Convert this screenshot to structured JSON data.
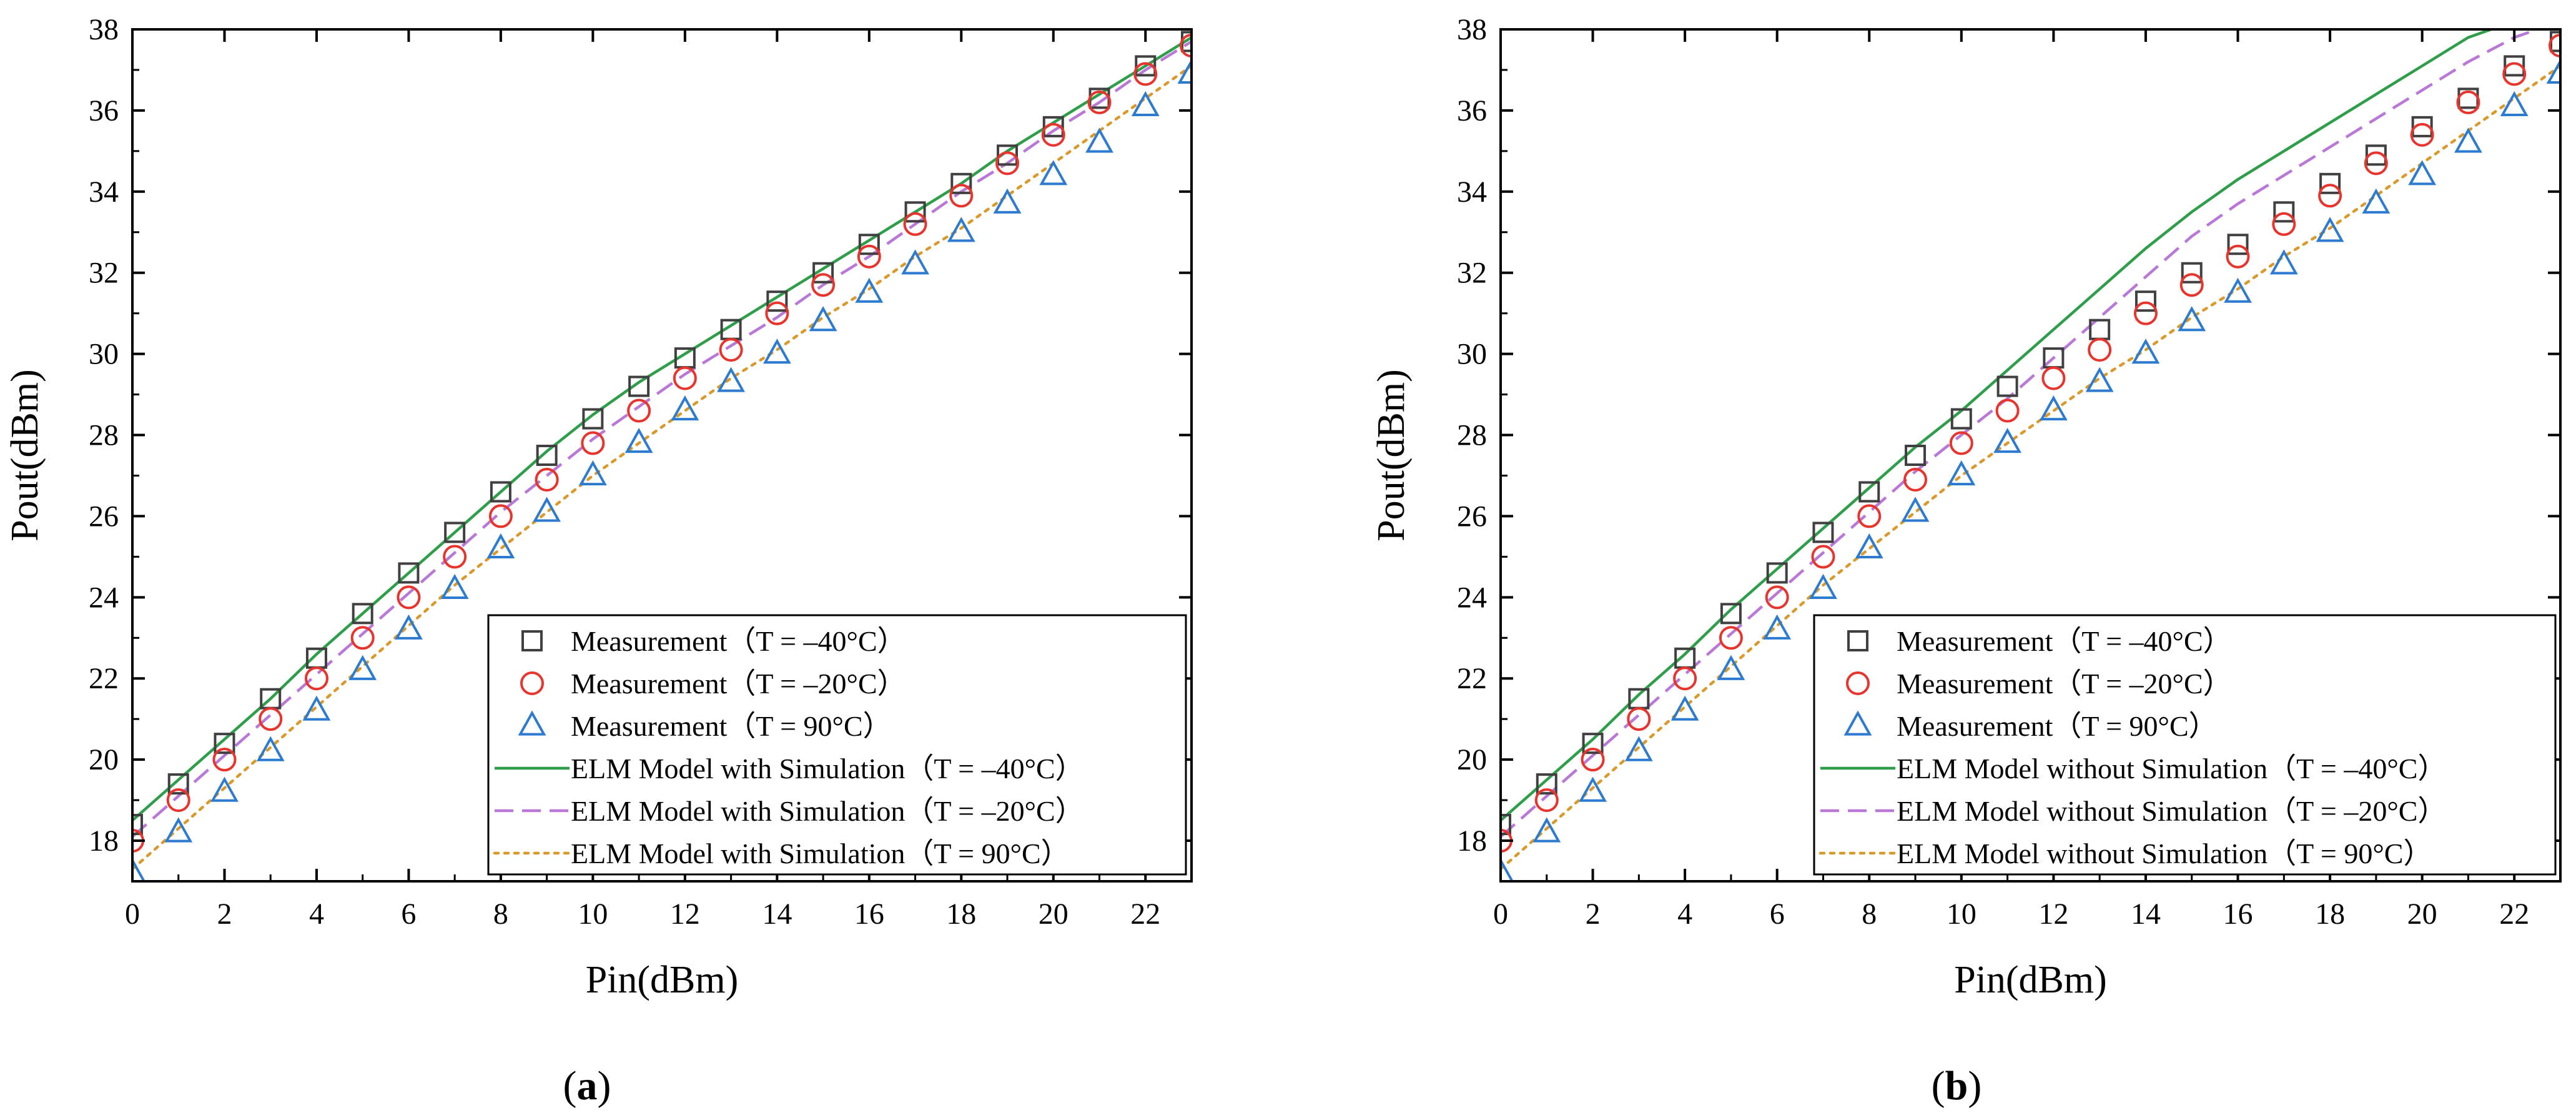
{
  "chart_data": [
    {
      "type": "line",
      "panel_label": "(a)",
      "panel_letter": "a",
      "xlabel": "Pin(dBm)",
      "ylabel": "Pout(dBm)",
      "xlim": [
        0,
        23
      ],
      "ylim": [
        17,
        38
      ],
      "xticks": [
        0,
        2,
        4,
        6,
        8,
        10,
        12,
        14,
        16,
        18,
        20,
        22
      ],
      "yticks": [
        18,
        20,
        22,
        24,
        26,
        28,
        30,
        32,
        34,
        36,
        38
      ],
      "legend_position": "bottom-right",
      "series": [
        {
          "name": "Measurement（T = –40°C）",
          "kind": "marker",
          "marker": "square",
          "color": "#404040",
          "x": [
            0,
            1,
            2,
            3,
            4,
            5,
            6,
            7,
            8,
            9,
            10,
            11,
            12,
            13,
            14,
            15,
            16,
            17,
            18,
            19,
            20,
            21,
            22,
            23
          ],
          "values": [
            18.4,
            19.4,
            20.4,
            21.5,
            22.5,
            23.6,
            24.6,
            25.6,
            26.6,
            27.5,
            28.4,
            29.2,
            29.9,
            30.6,
            31.3,
            32.0,
            32.7,
            33.5,
            34.2,
            34.9,
            35.6,
            36.3,
            37.1,
            37.7
          ]
        },
        {
          "name": "Measurement（T = –20°C）",
          "kind": "marker",
          "marker": "circle",
          "color": "#e8342c",
          "x": [
            0,
            1,
            2,
            3,
            4,
            5,
            6,
            7,
            8,
            9,
            10,
            11,
            12,
            13,
            14,
            15,
            16,
            17,
            18,
            19,
            20,
            21,
            22,
            23
          ],
          "values": [
            18.0,
            19.0,
            20.0,
            21.0,
            22.0,
            23.0,
            24.0,
            25.0,
            26.0,
            26.9,
            27.8,
            28.6,
            29.4,
            30.1,
            31.0,
            31.7,
            32.4,
            33.2,
            33.9,
            34.7,
            35.4,
            36.2,
            36.9,
            37.6
          ]
        },
        {
          "name": "Measurement（T = 90°C）",
          "kind": "marker",
          "marker": "triangle",
          "color": "#2d7bd0",
          "x": [
            0,
            1,
            2,
            3,
            4,
            5,
            6,
            7,
            8,
            9,
            10,
            11,
            12,
            13,
            14,
            15,
            16,
            17,
            18,
            19,
            20,
            21,
            22,
            23
          ],
          "values": [
            17.2,
            18.2,
            19.2,
            20.2,
            21.2,
            22.2,
            23.2,
            24.2,
            25.2,
            26.1,
            27.0,
            27.8,
            28.6,
            29.3,
            30.0,
            30.8,
            31.5,
            32.2,
            33.0,
            33.7,
            34.4,
            35.2,
            36.1,
            36.9
          ]
        },
        {
          "name": "ELM Model with Simulation（T = –40°C）",
          "kind": "line",
          "dash": "solid",
          "color": "#2e9e4a",
          "x": [
            0,
            1,
            2,
            3,
            4,
            5,
            6,
            7,
            8,
            9,
            10,
            11,
            12,
            13,
            14,
            15,
            16,
            17,
            18,
            19,
            20,
            21,
            22,
            23
          ],
          "values": [
            18.5,
            19.5,
            20.5,
            21.5,
            22.6,
            23.6,
            24.6,
            25.6,
            26.6,
            27.6,
            28.5,
            29.3,
            30.0,
            30.7,
            31.4,
            32.1,
            32.8,
            33.5,
            34.2,
            35.0,
            35.7,
            36.4,
            37.1,
            37.8
          ]
        },
        {
          "name": "ELM Model with Simulation（T = –20°C）",
          "kind": "line",
          "dash": "dashed",
          "color": "#b978d8",
          "x": [
            0,
            1,
            2,
            3,
            4,
            5,
            6,
            7,
            8,
            9,
            10,
            11,
            12,
            13,
            14,
            15,
            16,
            17,
            18,
            19,
            20,
            21,
            22,
            23
          ],
          "values": [
            18.1,
            19.1,
            20.1,
            21.1,
            22.1,
            23.1,
            24.1,
            25.1,
            26.1,
            27.0,
            27.9,
            28.7,
            29.5,
            30.2,
            30.9,
            31.7,
            32.4,
            33.2,
            34.0,
            34.7,
            35.5,
            36.2,
            37.0,
            37.7
          ]
        },
        {
          "name": "ELM Model with Simulation（T = 90°C）",
          "kind": "line",
          "dash": "dotted",
          "color": "#d99a2b",
          "x": [
            0,
            1,
            2,
            3,
            4,
            5,
            6,
            7,
            8,
            9,
            10,
            11,
            12,
            13,
            14,
            15,
            16,
            17,
            18,
            19,
            20,
            21,
            22,
            23
          ],
          "values": [
            17.3,
            18.3,
            19.3,
            20.3,
            21.3,
            22.3,
            23.3,
            24.3,
            25.2,
            26.1,
            27.0,
            27.8,
            28.6,
            29.4,
            30.1,
            30.9,
            31.6,
            32.4,
            33.1,
            33.9,
            34.7,
            35.5,
            36.3,
            37.1
          ]
        }
      ]
    },
    {
      "type": "line",
      "panel_label": "(b)",
      "panel_letter": "b",
      "xlabel": "Pin(dBm)",
      "ylabel": "Pout(dBm)",
      "xlim": [
        0,
        23
      ],
      "ylim": [
        17,
        38
      ],
      "xticks": [
        0,
        2,
        4,
        6,
        8,
        10,
        12,
        14,
        16,
        18,
        20,
        22
      ],
      "yticks": [
        18,
        20,
        22,
        24,
        26,
        28,
        30,
        32,
        34,
        36,
        38
      ],
      "legend_position": "bottom-right",
      "series": [
        {
          "name": "Measurement（T = –40°C）",
          "kind": "marker",
          "marker": "square",
          "color": "#404040",
          "x": [
            0,
            1,
            2,
            3,
            4,
            5,
            6,
            7,
            8,
            9,
            10,
            11,
            12,
            13,
            14,
            15,
            16,
            17,
            18,
            19,
            20,
            21,
            22,
            23
          ],
          "values": [
            18.4,
            19.4,
            20.4,
            21.5,
            22.5,
            23.6,
            24.6,
            25.6,
            26.6,
            27.5,
            28.4,
            29.2,
            29.9,
            30.6,
            31.3,
            32.0,
            32.7,
            33.5,
            34.2,
            34.9,
            35.6,
            36.3,
            37.1,
            37.7
          ]
        },
        {
          "name": "Measurement（T = –20°C）",
          "kind": "marker",
          "marker": "circle",
          "color": "#e8342c",
          "x": [
            0,
            1,
            2,
            3,
            4,
            5,
            6,
            7,
            8,
            9,
            10,
            11,
            12,
            13,
            14,
            15,
            16,
            17,
            18,
            19,
            20,
            21,
            22,
            23
          ],
          "values": [
            18.0,
            19.0,
            20.0,
            21.0,
            22.0,
            23.0,
            24.0,
            25.0,
            26.0,
            26.9,
            27.8,
            28.6,
            29.4,
            30.1,
            31.0,
            31.7,
            32.4,
            33.2,
            33.9,
            34.7,
            35.4,
            36.2,
            36.9,
            37.6
          ]
        },
        {
          "name": "Measurement（T = 90°C）",
          "kind": "marker",
          "marker": "triangle",
          "color": "#2d7bd0",
          "x": [
            0,
            1,
            2,
            3,
            4,
            5,
            6,
            7,
            8,
            9,
            10,
            11,
            12,
            13,
            14,
            15,
            16,
            17,
            18,
            19,
            20,
            21,
            22,
            23
          ],
          "values": [
            17.2,
            18.2,
            19.2,
            20.2,
            21.2,
            22.2,
            23.2,
            24.2,
            25.2,
            26.1,
            27.0,
            27.8,
            28.6,
            29.3,
            30.0,
            30.8,
            31.5,
            32.2,
            33.0,
            33.7,
            34.4,
            35.2,
            36.1,
            36.9
          ]
        },
        {
          "name": "ELM Model without Simulation（T = –40°C）",
          "kind": "line",
          "dash": "solid",
          "color": "#2e9e4a",
          "x": [
            0,
            1,
            2,
            3,
            4,
            5,
            6,
            7,
            8,
            9,
            10,
            11,
            12,
            13,
            14,
            15,
            16,
            17,
            18,
            19,
            20,
            21,
            21.5
          ],
          "values": [
            18.5,
            19.5,
            20.5,
            21.6,
            22.6,
            23.7,
            24.7,
            25.7,
            26.7,
            27.7,
            28.6,
            29.6,
            30.6,
            31.6,
            32.6,
            33.5,
            34.3,
            35.0,
            35.7,
            36.4,
            37.1,
            37.8,
            38.0
          ]
        },
        {
          "name": "ELM Model without Simulation（T = –20°C）",
          "kind": "line",
          "dash": "dashed",
          "color": "#b978d8",
          "x": [
            0,
            1,
            2,
            3,
            4,
            5,
            6,
            7,
            8,
            9,
            10,
            11,
            12,
            13,
            14,
            15,
            16,
            17,
            18,
            19,
            20,
            21,
            22,
            22.5
          ],
          "values": [
            18.1,
            19.1,
            20.1,
            21.1,
            22.1,
            23.1,
            24.1,
            25.1,
            26.1,
            27.1,
            28.0,
            28.9,
            29.9,
            30.9,
            31.9,
            32.9,
            33.7,
            34.4,
            35.1,
            35.8,
            36.5,
            37.2,
            37.8,
            38.0
          ]
        },
        {
          "name": "ELM Model without Simulation（T = 90°C）",
          "kind": "line",
          "dash": "dotted",
          "color": "#d99a2b",
          "x": [
            0,
            1,
            2,
            3,
            4,
            5,
            6,
            7,
            8,
            9,
            10,
            11,
            12,
            13,
            14,
            15,
            16,
            17,
            18,
            19,
            20,
            21,
            22,
            23
          ],
          "values": [
            17.3,
            18.3,
            19.3,
            20.3,
            21.3,
            22.3,
            23.3,
            24.3,
            25.2,
            26.1,
            27.0,
            27.8,
            28.6,
            29.4,
            30.1,
            30.9,
            31.6,
            32.4,
            33.1,
            33.9,
            34.7,
            35.5,
            36.3,
            37.1
          ]
        }
      ]
    }
  ]
}
